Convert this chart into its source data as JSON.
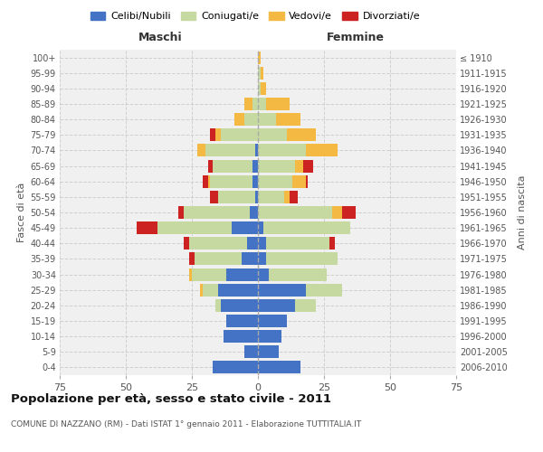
{
  "age_groups": [
    "0-4",
    "5-9",
    "10-14",
    "15-19",
    "20-24",
    "25-29",
    "30-34",
    "35-39",
    "40-44",
    "45-49",
    "50-54",
    "55-59",
    "60-64",
    "65-69",
    "70-74",
    "75-79",
    "80-84",
    "85-89",
    "90-94",
    "95-99",
    "100+"
  ],
  "birth_years": [
    "2006-2010",
    "2001-2005",
    "1996-2000",
    "1991-1995",
    "1986-1990",
    "1981-1985",
    "1976-1980",
    "1971-1975",
    "1966-1970",
    "1961-1965",
    "1956-1960",
    "1951-1955",
    "1946-1950",
    "1941-1945",
    "1936-1940",
    "1931-1935",
    "1926-1930",
    "1921-1925",
    "1916-1920",
    "1911-1915",
    "≤ 1910"
  ],
  "male": {
    "celibi": [
      17,
      5,
      13,
      12,
      14,
      15,
      12,
      6,
      4,
      10,
      3,
      1,
      2,
      2,
      1,
      0,
      0,
      0,
      0,
      0,
      0
    ],
    "coniugati": [
      0,
      0,
      0,
      0,
      2,
      6,
      13,
      18,
      22,
      28,
      25,
      14,
      16,
      15,
      19,
      14,
      5,
      2,
      0,
      0,
      0
    ],
    "vedovi": [
      0,
      0,
      0,
      0,
      0,
      1,
      1,
      0,
      0,
      0,
      0,
      0,
      1,
      0,
      3,
      2,
      4,
      3,
      0,
      0,
      0
    ],
    "divorziati": [
      0,
      0,
      0,
      0,
      0,
      0,
      0,
      2,
      2,
      8,
      2,
      3,
      2,
      2,
      0,
      2,
      0,
      0,
      0,
      0,
      0
    ]
  },
  "female": {
    "nubili": [
      16,
      8,
      9,
      11,
      14,
      18,
      4,
      3,
      3,
      2,
      0,
      0,
      0,
      0,
      0,
      0,
      0,
      0,
      0,
      0,
      0
    ],
    "coniugate": [
      0,
      0,
      0,
      0,
      8,
      14,
      22,
      27,
      24,
      33,
      28,
      10,
      13,
      14,
      18,
      11,
      7,
      3,
      1,
      1,
      0
    ],
    "vedove": [
      0,
      0,
      0,
      0,
      0,
      0,
      0,
      0,
      0,
      0,
      4,
      2,
      5,
      3,
      12,
      11,
      9,
      9,
      2,
      1,
      1
    ],
    "divorziate": [
      0,
      0,
      0,
      0,
      0,
      0,
      0,
      0,
      2,
      0,
      5,
      3,
      1,
      4,
      0,
      0,
      0,
      0,
      0,
      0,
      0
    ]
  },
  "colors": {
    "celibi": "#4472c4",
    "coniugati": "#c5d9a0",
    "vedovi": "#f4b942",
    "divorziati": "#cc2222"
  },
  "title": "Popolazione per età, sesso e stato civile - 2011",
  "subtitle": "COMUNE DI NAZZANO (RM) - Dati ISTAT 1° gennaio 2011 - Elaborazione TUTTITALIA.IT",
  "xlabel_left": "Maschi",
  "xlabel_right": "Femmine",
  "ylabel_left": "Fasce di età",
  "ylabel_right": "Anni di nascita",
  "legend_labels": [
    "Celibi/Nubili",
    "Coniugati/e",
    "Vedovi/e",
    "Divorziati/e"
  ],
  "xlim": 75,
  "background_color": "#ffffff",
  "plot_bg_color": "#f0f0f0",
  "grid_color": "#cccccc"
}
